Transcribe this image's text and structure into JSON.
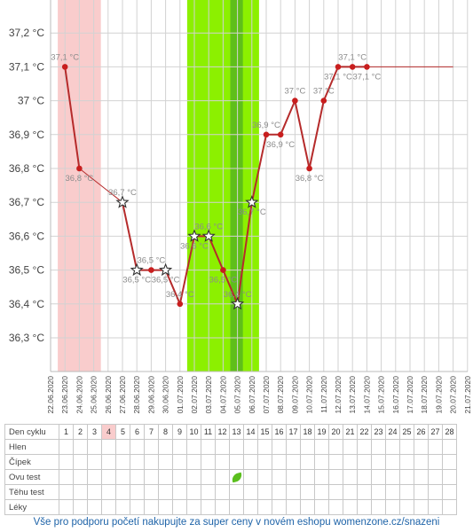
{
  "chart_data": {
    "type": "line",
    "x": [
      "22.06.2020",
      "23.06.2020",
      "24.06.2020",
      "25.06.2020",
      "26.06.2020",
      "27.06.2020",
      "28.06.2020",
      "29.06.2020",
      "30.06.2020",
      "01.07.2020",
      "02.07.2020",
      "03.07.2020",
      "04.07.2020",
      "05.07.2020",
      "06.07.2020",
      "07.07.2020",
      "08.07.2020",
      "09.07.2020",
      "10.07.2020",
      "11.07.2020",
      "12.07.2020",
      "13.07.2020",
      "14.07.2020",
      "15.07.2020",
      "16.07.2020",
      "17.07.2020",
      "18.07.2020",
      "19.07.2020",
      "20.07.2020",
      "21.07.2020"
    ],
    "y_ticks": [
      "36,3 °C",
      "36,4 °C",
      "36,5 °C",
      "36,6 °C",
      "36,7 °C",
      "36,8 °C",
      "36,9 °C",
      "37 °C",
      "37,1 °C",
      "37,2 °C"
    ],
    "ylim": [
      36.2,
      37.3
    ],
    "series": [
      {
        "points": [
          {
            "x": "23.06.2020",
            "y": 37.1,
            "label": "37,1 °C",
            "marker": "dot"
          },
          {
            "x": "24.06.2020",
            "y": 36.8,
            "label": "36,8 °C",
            "marker": "dot"
          },
          {
            "x": "27.06.2020",
            "y": 36.7,
            "label": "36,7 °C",
            "marker": "star"
          },
          {
            "x": "28.06.2020",
            "y": 36.5,
            "label": "36,5 °C",
            "marker": "star"
          },
          {
            "x": "29.06.2020",
            "y": 36.5,
            "label": "36,5 °C",
            "marker": "dot"
          },
          {
            "x": "30.06.2020",
            "y": 36.5,
            "label": "36,5 °C",
            "marker": "star"
          },
          {
            "x": "01.07.2020",
            "y": 36.4,
            "label": "36,4 °C",
            "marker": "dot"
          },
          {
            "x": "02.07.2020",
            "y": 36.6,
            "label": "36,6 °C",
            "marker": "star"
          },
          {
            "x": "03.07.2020",
            "y": 36.6,
            "label": "36,6 °C",
            "marker": "star"
          },
          {
            "x": "04.07.2020",
            "y": 36.5,
            "label": "36,5 °C",
            "marker": "dot"
          },
          {
            "x": "05.07.2020",
            "y": 36.4,
            "label": "36,4 °C",
            "marker": "star"
          },
          {
            "x": "06.07.2020",
            "y": 36.7,
            "label": "36,7 °C",
            "marker": "star"
          },
          {
            "x": "07.07.2020",
            "y": 36.9,
            "label": "36,9 °C",
            "marker": "dot"
          },
          {
            "x": "08.07.2020",
            "y": 36.9,
            "label": "36,9 °C",
            "marker": "dot"
          },
          {
            "x": "09.07.2020",
            "y": 37.0,
            "label": "37 °C",
            "marker": "dot"
          },
          {
            "x": "10.07.2020",
            "y": 36.8,
            "label": "36,8 °C",
            "marker": "dot"
          },
          {
            "x": "11.07.2020",
            "y": 37.0,
            "label": "37 °C",
            "marker": "dot"
          },
          {
            "x": "12.07.2020",
            "y": 37.1,
            "label": "37,1 °C",
            "marker": "dot"
          },
          {
            "x": "13.07.2020",
            "y": 37.1,
            "label": "37,1 °C",
            "marker": "dot"
          },
          {
            "x": "14.07.2020",
            "y": 37.1,
            "label": "37,1 °C",
            "marker": "dot"
          }
        ]
      }
    ],
    "coverline": {
      "value": 37.1,
      "from": "14.07.2020",
      "to": "20.07.2020"
    },
    "bands": [
      {
        "from": "23.06.2020",
        "to": "25.06.2020",
        "color": "#f9cccc"
      },
      {
        "from": "02.07.2020",
        "to": "06.07.2020",
        "color": "#8cf000"
      },
      {
        "from": "05.07.2020",
        "to": "05.07.2020",
        "color": "#5fbf1a"
      }
    ],
    "grid": true,
    "colors": {
      "line": "#b52b2b",
      "dot": "#c81e1e",
      "label": "#8c8c8c",
      "grid": "#d2d2d2",
      "axis_text": "#444444"
    }
  },
  "table": {
    "rows": [
      "Den cyklu",
      "Hlen",
      "Čípek",
      "Ovu test",
      "Těhu test",
      "Léky"
    ],
    "days": [
      "1",
      "2",
      "3",
      "4",
      "5",
      "6",
      "7",
      "8",
      "9",
      "10",
      "11",
      "12",
      "13",
      "14",
      "15",
      "16",
      "17",
      "18",
      "19",
      "20",
      "21",
      "22",
      "23",
      "24",
      "25",
      "26",
      "27",
      "28"
    ],
    "highlighted_day": "4",
    "ovu_test_icon": {
      "day": "13",
      "icon": "leaf-icon"
    }
  },
  "footer": {
    "text": "Vše pro podporu početí nakupujte za super ceny v novém eshopu womenzone.cz/snazeni"
  }
}
